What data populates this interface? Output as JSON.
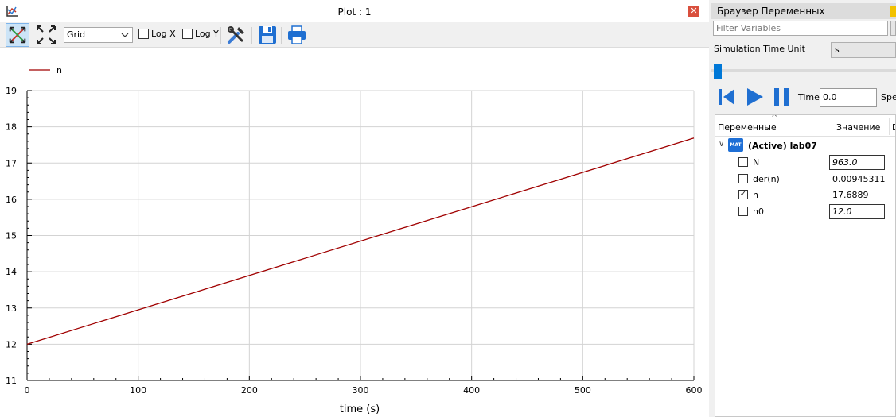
{
  "plot": {
    "title": "Plot : 1",
    "close_glyph": "✕",
    "toolbar": {
      "grid_select_value": "Grid",
      "log_x_label": "Log X",
      "log_y_label": "Log Y",
      "log_x_checked": false,
      "log_y_checked": false
    },
    "legend": [
      {
        "name": "n",
        "color": "#a00000"
      }
    ]
  },
  "chart_data": {
    "type": "line",
    "xlabel": "time (s)",
    "ylabel": "",
    "xlim": [
      0,
      600
    ],
    "ylim": [
      11,
      19
    ],
    "xticks": [
      0,
      100,
      200,
      300,
      400,
      500,
      600
    ],
    "yticks": [
      11,
      12,
      13,
      14,
      15,
      16,
      17,
      18,
      19
    ],
    "grid": true,
    "legend_position": "top-left",
    "series": [
      {
        "name": "n",
        "color": "#a00000",
        "x": [
          0,
          600
        ],
        "y": [
          12.0,
          17.69
        ]
      }
    ]
  },
  "variables_browser": {
    "title": "Браузер Переменных",
    "filter_placeholder": "Filter Variables",
    "sim_time_unit_label": "Simulation Time Unit",
    "sim_time_unit_value": "s",
    "time_label": "Time:",
    "time_value": "0.0",
    "speed_label": "Spe",
    "headers": {
      "variables": "Переменные",
      "value": "Значение",
      "desc": "D"
    },
    "model": {
      "icon_text": "MAT",
      "name": "(Active) lab07"
    },
    "rows": [
      {
        "name": "N",
        "value": "963.0",
        "editable": true,
        "checked": false
      },
      {
        "name": "der(n)",
        "value": "0.00945311",
        "editable": false,
        "checked": false
      },
      {
        "name": "n",
        "value": "17.6889",
        "editable": false,
        "checked": true
      },
      {
        "name": "n0",
        "value": "12.0",
        "editable": true,
        "checked": false
      }
    ]
  }
}
